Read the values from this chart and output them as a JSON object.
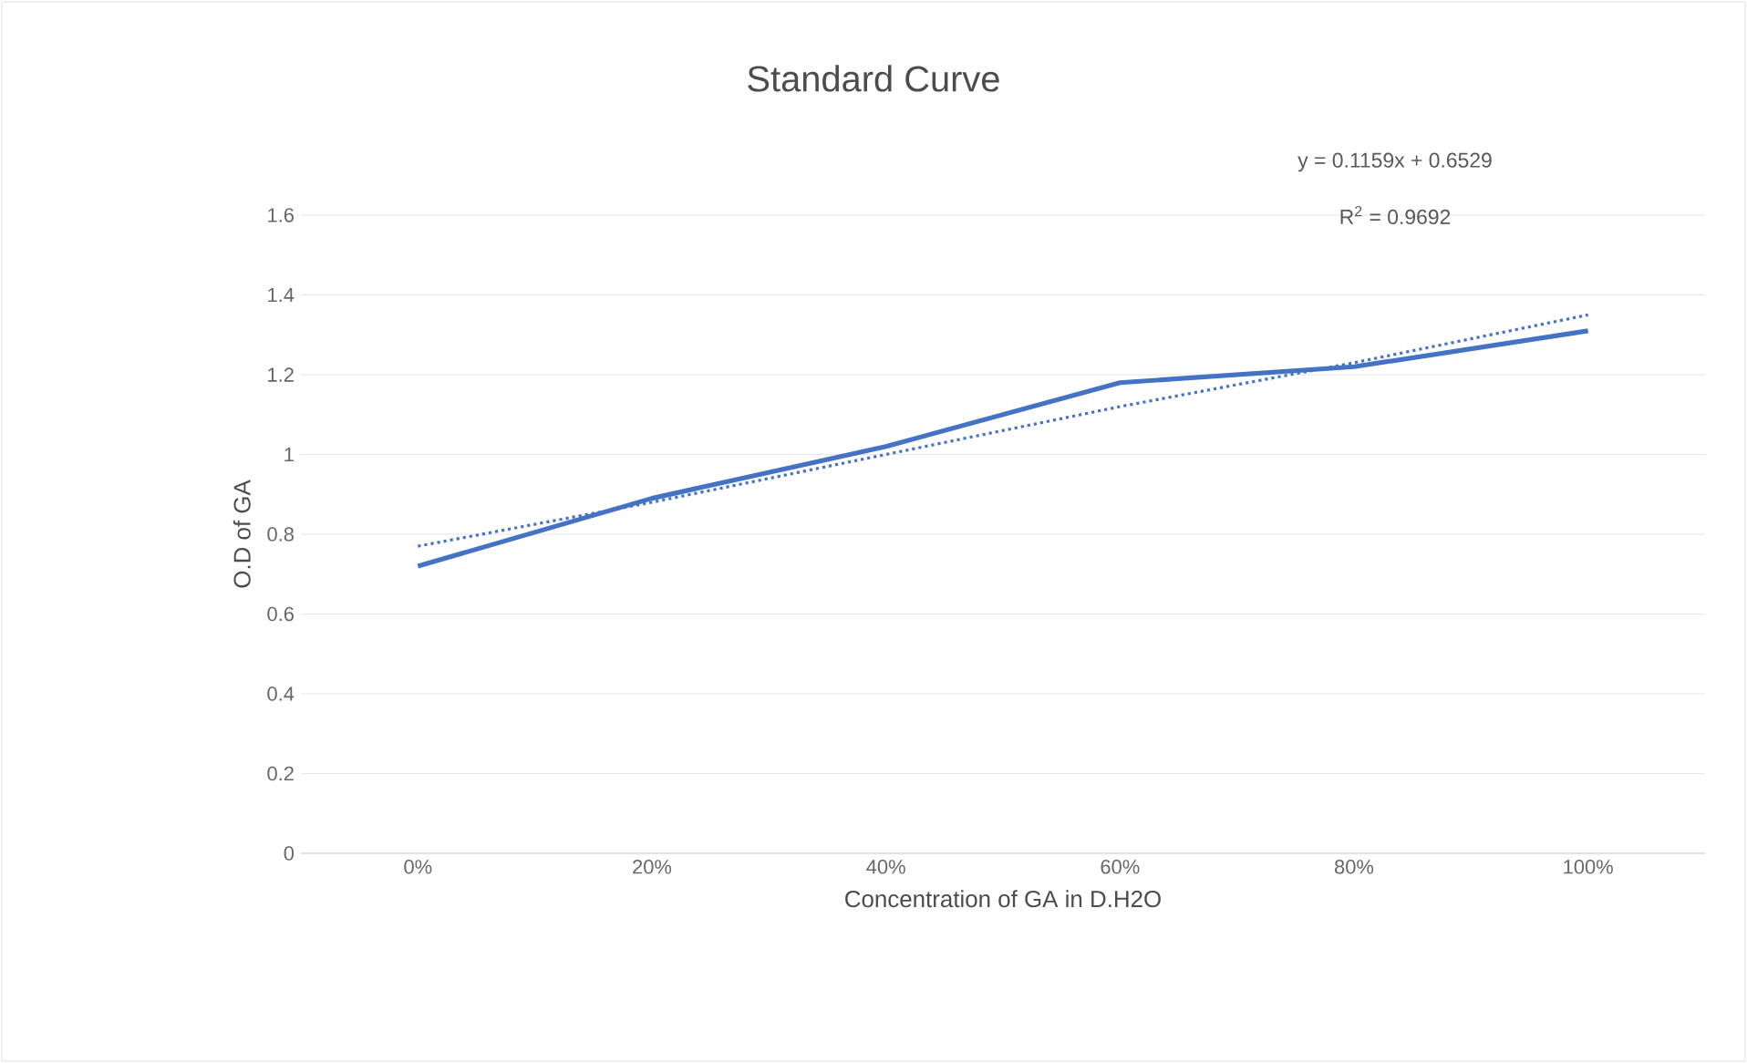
{
  "chart_data": {
    "type": "line",
    "title": "Standard Curve",
    "xlabel": "Concentration of GA in D.H2O",
    "ylabel": "O.D of GA",
    "categories": [
      "0%",
      "20%",
      "40%",
      "60%",
      "80%",
      "100%"
    ],
    "series": [
      {
        "color": "#4472c4",
        "values": [
          0.72,
          0.89,
          1.02,
          1.18,
          1.22,
          1.31
        ]
      },
      {
        "type": "line",
        "color": "#4472c4",
        "line_style": "dotted",
        "values": [
          0.77,
          0.88,
          1.0,
          1.12,
          1.23,
          1.35
        ]
      }
    ],
    "ylim": [
      0,
      1.6
    ],
    "yticks": [
      0,
      0.2,
      0.4,
      0.6,
      0.8,
      1,
      1.2,
      1.4,
      1.6
    ],
    "grid": "y",
    "annotations": [
      "y = 0.1159x + 0.6529",
      "R$^{2}$ = 0.9692"
    ]
  }
}
